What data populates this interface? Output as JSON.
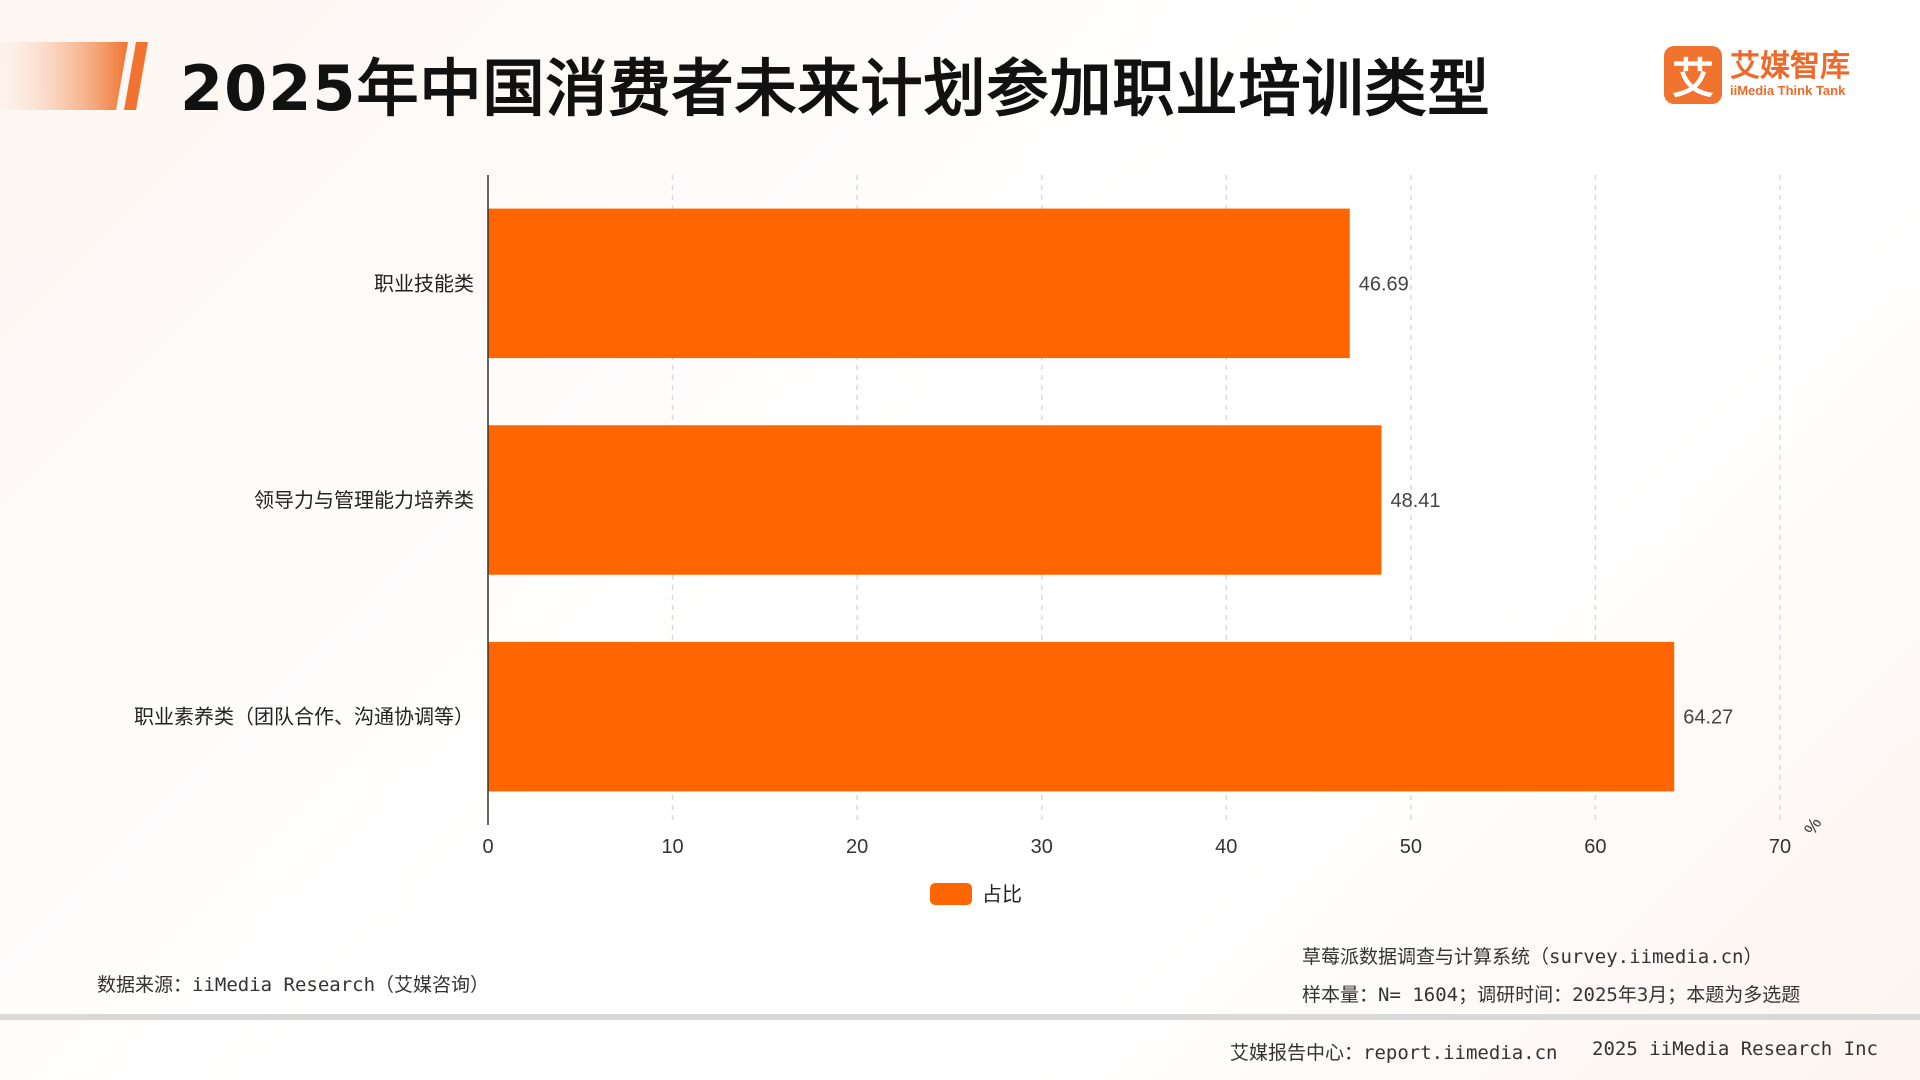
{
  "header": {
    "title": "2025年中国消费者未来计划参加职业培训类型"
  },
  "logo": {
    "mark": "艾",
    "name": "艾媒智库",
    "subtitle": "iiMedia Think Tank"
  },
  "colors": {
    "bar": "#ff6600",
    "accent": "#f0742f",
    "axis": "#333333",
    "grid": "#d6dbe6"
  },
  "chart_data": {
    "type": "bar",
    "orientation": "horizontal",
    "categories": [
      "职业技能类",
      "领导力与管理能力培养类",
      "职业素养类（团队合作、沟通协调等）"
    ],
    "series": [
      {
        "name": "占比",
        "values": [
          46.69,
          48.41,
          64.27
        ]
      }
    ],
    "value_labels": [
      "46.69",
      "48.41",
      "64.27"
    ],
    "xlim": [
      0,
      70
    ],
    "xticks": [
      0,
      10,
      20,
      30,
      40,
      50,
      60,
      70
    ],
    "x_unit": "%",
    "grid": true,
    "legend_position": "bottom-center"
  },
  "footer": {
    "source": "数据来源：iiMedia Research（艾媒咨询）",
    "system": "草莓派数据调查与计算系统（survey.iimedia.cn）",
    "sample": "样本量：N= 1604；调研时间：2025年3月；本题为多选题",
    "center": "艾媒报告中心：report.iimedia.cn",
    "copyright": "2025 iiMedia Research Inc"
  }
}
